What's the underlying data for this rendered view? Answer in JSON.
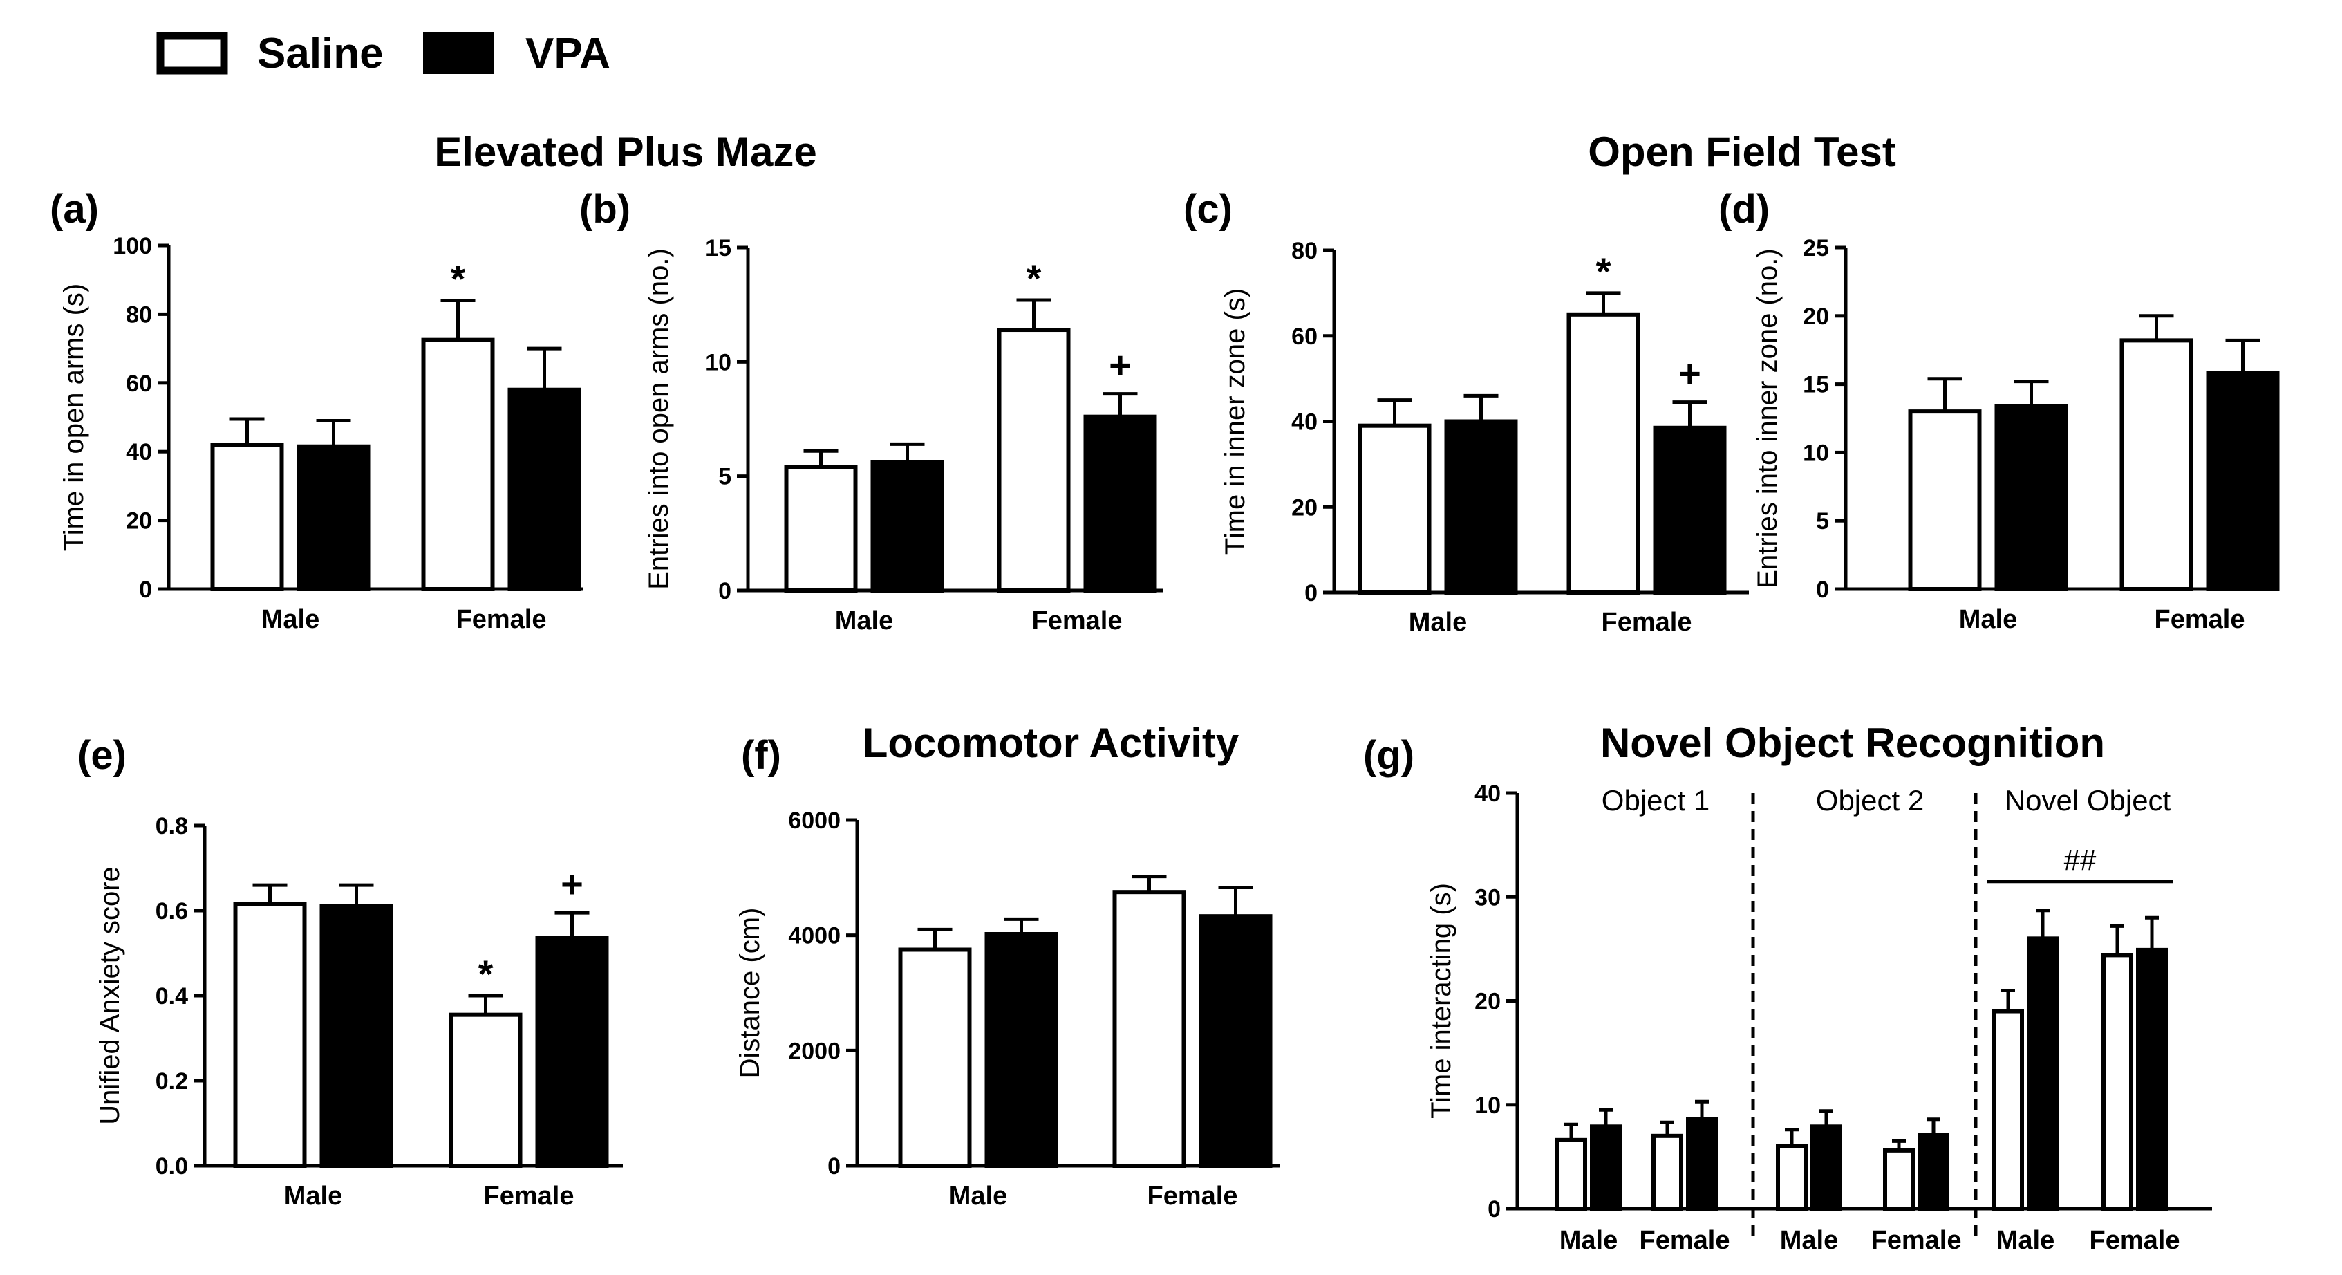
{
  "legend": {
    "saline_label": "Saline",
    "vpa_label": "VPA",
    "saline_fill": "#ffffff",
    "vpa_fill": "#000000",
    "stroke": "#000000"
  },
  "headings": {
    "epm": "Elevated Plus Maze",
    "oft": "Open  Field Test",
    "loco": "Locomotor Activity",
    "nor": "Novel  Object Recognition"
  },
  "chart_data": [
    {
      "id": "a",
      "panel_label": "(a)",
      "type": "bar",
      "ylabel": "Time in open arms (s)",
      "ylim": [
        0,
        100
      ],
      "yticks": [
        0,
        20,
        40,
        60,
        80,
        100
      ],
      "categories": [
        "Male",
        "Female"
      ],
      "series": [
        {
          "name": "Saline",
          "values": [
            42,
            72.5
          ],
          "errors": [
            7.5,
            11.5
          ]
        },
        {
          "name": "VPA",
          "values": [
            41.5,
            58
          ],
          "errors": [
            7.5,
            12
          ]
        }
      ],
      "annotations": [
        {
          "text": "*",
          "category": 1,
          "series": 0
        }
      ]
    },
    {
      "id": "b",
      "panel_label": "(b)",
      "type": "bar",
      "ylabel": "Entries into open arms (no.)",
      "ylim": [
        0,
        15
      ],
      "yticks": [
        0,
        5,
        10,
        15
      ],
      "categories": [
        "Male",
        "Female"
      ],
      "series": [
        {
          "name": "Saline",
          "values": [
            5.4,
            11.4
          ],
          "errors": [
            0.7,
            1.3
          ]
        },
        {
          "name": "VPA",
          "values": [
            5.6,
            7.6
          ],
          "errors": [
            0.8,
            1.0
          ]
        }
      ],
      "annotations": [
        {
          "text": "*",
          "category": 1,
          "series": 0
        },
        {
          "text": "+",
          "category": 1,
          "series": 1
        }
      ]
    },
    {
      "id": "c",
      "panel_label": "(c)",
      "type": "bar",
      "ylabel": "Time in inner zone (s)",
      "ylim": [
        0,
        80
      ],
      "yticks": [
        0,
        20,
        40,
        60,
        80
      ],
      "categories": [
        "Male",
        "Female"
      ],
      "series": [
        {
          "name": "Saline",
          "values": [
            39,
            65
          ],
          "errors": [
            6,
            5
          ]
        },
        {
          "name": "VPA",
          "values": [
            40,
            38.5
          ],
          "errors": [
            6,
            6
          ]
        }
      ],
      "annotations": [
        {
          "text": "*",
          "category": 1,
          "series": 0
        },
        {
          "text": "+",
          "category": 1,
          "series": 1
        }
      ]
    },
    {
      "id": "d",
      "panel_label": "(d)",
      "type": "bar",
      "ylabel": "Entries into inner zone (no.)",
      "ylim": [
        0,
        25
      ],
      "yticks": [
        0,
        5,
        10,
        15,
        20,
        25
      ],
      "categories": [
        "Male",
        "Female"
      ],
      "series": [
        {
          "name": "Saline",
          "values": [
            13,
            18.2
          ],
          "errors": [
            2.4,
            1.8
          ]
        },
        {
          "name": "VPA",
          "values": [
            13.4,
            15.8
          ],
          "errors": [
            1.8,
            2.4
          ]
        }
      ],
      "annotations": []
    },
    {
      "id": "e",
      "panel_label": "(e)",
      "type": "bar",
      "ylabel": "Unified Anxiety score",
      "ylim": [
        0,
        0.8
      ],
      "yticks": [
        0,
        0.2,
        0.4,
        0.6,
        0.8
      ],
      "tick_decimals": 1,
      "categories": [
        "Male",
        "Female"
      ],
      "series": [
        {
          "name": "Saline",
          "values": [
            0.615,
            0.355
          ],
          "errors": [
            0.045,
            0.045
          ]
        },
        {
          "name": "VPA",
          "values": [
            0.61,
            0.535
          ],
          "errors": [
            0.05,
            0.06
          ]
        }
      ],
      "annotations": [
        {
          "text": "*",
          "category": 1,
          "series": 0
        },
        {
          "text": "+",
          "category": 1,
          "series": 1
        }
      ]
    },
    {
      "id": "f",
      "panel_label": "(f)",
      "type": "bar",
      "ylabel": "Distance (cm)",
      "ylim": [
        0,
        6000
      ],
      "yticks": [
        0,
        2000,
        4000,
        6000
      ],
      "categories": [
        "Male",
        "Female"
      ],
      "series": [
        {
          "name": "Saline",
          "values": [
            3750,
            4750
          ],
          "errors": [
            350,
            270
          ]
        },
        {
          "name": "VPA",
          "values": [
            4020,
            4330
          ],
          "errors": [
            260,
            500
          ]
        }
      ],
      "annotations": []
    },
    {
      "id": "g",
      "panel_label": "(g)",
      "type": "bar",
      "ylabel": "Time interacting (s)",
      "ylim": [
        0,
        40
      ],
      "yticks": [
        0,
        10,
        20,
        30,
        40
      ],
      "groups": [
        "Object 1",
        "Object 2",
        "Novel Object"
      ],
      "categories": [
        "Male",
        "Female",
        "Male",
        "Female",
        "Male",
        "Female"
      ],
      "series": [
        {
          "name": "Saline",
          "values": [
            6.6,
            7.0,
            6.0,
            5.6,
            19.0,
            24.4
          ],
          "errors": [
            1.5,
            1.3,
            1.6,
            0.9,
            2.0,
            2.8
          ]
        },
        {
          "name": "VPA",
          "values": [
            7.9,
            8.6,
            7.9,
            7.1,
            26.0,
            24.9
          ],
          "errors": [
            1.6,
            1.7,
            1.5,
            1.5,
            2.7,
            3.1
          ]
        }
      ],
      "annotations": [
        {
          "text": "##",
          "value": 31.5,
          "from_category": 4,
          "to_category": 5
        }
      ]
    }
  ]
}
